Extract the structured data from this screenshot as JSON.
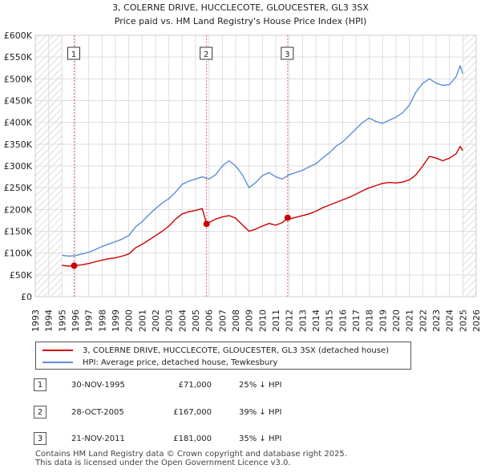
{
  "chart_data": {
    "type": "line",
    "title": "3, COLERNE DRIVE, HUCCLECOTE, GLOUCESTER, GL3 3SX",
    "subtitle": "Price paid vs. HM Land Registry's House Price Index (HPI)",
    "xlabel": "",
    "ylabel": "",
    "xlim": [
      1993,
      2026
    ],
    "ylim": [
      0,
      600000
    ],
    "y_ticks": [
      {
        "value": 0,
        "label": "£0"
      },
      {
        "value": 50000,
        "label": "£50K"
      },
      {
        "value": 100000,
        "label": "£100K"
      },
      {
        "value": 150000,
        "label": "£150K"
      },
      {
        "value": 200000,
        "label": "£200K"
      },
      {
        "value": 250000,
        "label": "£250K"
      },
      {
        "value": 300000,
        "label": "£300K"
      },
      {
        "value": 350000,
        "label": "£350K"
      },
      {
        "value": 400000,
        "label": "£400K"
      },
      {
        "value": 450000,
        "label": "£450K"
      },
      {
        "value": 500000,
        "label": "£500K"
      },
      {
        "value": 550000,
        "label": "£550K"
      },
      {
        "value": 600000,
        "label": "£600K"
      }
    ],
    "x_ticks": [
      "1993",
      "1994",
      "1995",
      "1996",
      "1997",
      "1998",
      "1999",
      "2000",
      "2001",
      "2002",
      "2003",
      "2004",
      "2005",
      "2006",
      "2007",
      "2008",
      "2009",
      "2010",
      "2011",
      "2012",
      "2013",
      "2014",
      "2015",
      "2016",
      "2017",
      "2018",
      "2019",
      "2020",
      "2021",
      "2022",
      "2023",
      "2024",
      "2025",
      "2026"
    ],
    "hatched_ranges": [
      [
        1993,
        1995
      ],
      [
        2025.0,
        2026
      ]
    ],
    "grid": true,
    "series": [
      {
        "name": "3, COLERNE DRIVE, HUCCLECOTE, GLOUCESTER, GL3 3SX (detached house)",
        "color": "#cc0000",
        "x": [
          1995.0,
          1995.5,
          1995.9,
          1996.5,
          1997.0,
          1997.5,
          1998.0,
          1998.5,
          1999.0,
          1999.5,
          2000.0,
          2000.5,
          2001.0,
          2001.5,
          2002.0,
          2002.5,
          2003.0,
          2003.5,
          2004.0,
          2004.5,
          2005.0,
          2005.5,
          2005.82,
          2006.0,
          2006.5,
          2007.0,
          2007.5,
          2008.0,
          2008.5,
          2009.0,
          2009.5,
          2010.0,
          2010.5,
          2011.0,
          2011.5,
          2011.89,
          2012.0,
          2012.5,
          2013.0,
          2013.5,
          2014.0,
          2014.5,
          2015.0,
          2015.5,
          2016.0,
          2016.5,
          2017.0,
          2017.5,
          2018.0,
          2018.5,
          2019.0,
          2019.5,
          2020.0,
          2020.5,
          2021.0,
          2021.5,
          2022.0,
          2022.5,
          2023.0,
          2023.5,
          2024.0,
          2024.5,
          2024.8,
          2025.0
        ],
        "y": [
          72000,
          70000,
          71000,
          73000,
          76000,
          80000,
          84000,
          87000,
          89000,
          93000,
          98000,
          112000,
          120000,
          130000,
          140000,
          150000,
          162000,
          178000,
          190000,
          195000,
          198000,
          202000,
          167000,
          170000,
          178000,
          183000,
          186000,
          180000,
          165000,
          150000,
          155000,
          162000,
          168000,
          164000,
          170000,
          181000,
          178000,
          182000,
          186000,
          190000,
          196000,
          204000,
          210000,
          216000,
          222000,
          228000,
          235000,
          243000,
          250000,
          255000,
          260000,
          262000,
          261000,
          263000,
          268000,
          280000,
          300000,
          322000,
          318000,
          312000,
          318000,
          328000,
          345000,
          335000
        ]
      },
      {
        "name": "HPI: Average price, detached house, Tewkesbury",
        "color": "#5b8ed6",
        "x": [
          1995.0,
          1995.5,
          1996.0,
          1996.5,
          1997.0,
          1997.5,
          1998.0,
          1998.5,
          1999.0,
          1999.5,
          2000.0,
          2000.5,
          2001.0,
          2001.5,
          2002.0,
          2002.5,
          2003.0,
          2003.5,
          2004.0,
          2004.5,
          2005.0,
          2005.5,
          2006.0,
          2006.5,
          2007.0,
          2007.5,
          2008.0,
          2008.5,
          2009.0,
          2009.5,
          2010.0,
          2010.5,
          2011.0,
          2011.5,
          2012.0,
          2012.5,
          2013.0,
          2013.5,
          2014.0,
          2014.5,
          2015.0,
          2015.5,
          2016.0,
          2016.5,
          2017.0,
          2017.5,
          2018.0,
          2018.5,
          2019.0,
          2019.5,
          2020.0,
          2020.5,
          2021.0,
          2021.5,
          2022.0,
          2022.5,
          2023.0,
          2023.5,
          2024.0,
          2024.5,
          2024.8,
          2025.0
        ],
        "y": [
          95000,
          93000,
          94000,
          98000,
          102000,
          108000,
          115000,
          121000,
          126000,
          132000,
          140000,
          160000,
          172000,
          188000,
          202000,
          215000,
          225000,
          240000,
          258000,
          265000,
          270000,
          275000,
          270000,
          280000,
          300000,
          312000,
          300000,
          280000,
          250000,
          262000,
          278000,
          285000,
          275000,
          270000,
          280000,
          285000,
          290000,
          298000,
          305000,
          318000,
          330000,
          345000,
          355000,
          370000,
          385000,
          400000,
          410000,
          402000,
          398000,
          405000,
          412000,
          422000,
          440000,
          470000,
          490000,
          500000,
          490000,
          485000,
          487000,
          505000,
          530000,
          512000
        ]
      }
    ],
    "sale_markers": [
      {
        "label": "1",
        "x": 1995.91,
        "y": 71000
      },
      {
        "label": "2",
        "x": 2005.82,
        "y": 167000
      },
      {
        "label": "3",
        "x": 2011.89,
        "y": 181000
      }
    ]
  },
  "legend": {
    "property_label": "3, COLERNE DRIVE, HUCCLECOTE, GLOUCESTER, GL3 3SX (detached house)",
    "property_color": "#cc0000",
    "hpi_label": "HPI: Average price, detached house, Tewkesbury",
    "hpi_color": "#5b8ed6"
  },
  "sales": [
    {
      "num": "1",
      "date": "30-NOV-1995",
      "price": "£71,000",
      "hpi": "25% ↓ HPI"
    },
    {
      "num": "2",
      "date": "28-OCT-2005",
      "price": "£167,000",
      "hpi": "39% ↓ HPI"
    },
    {
      "num": "3",
      "date": "21-NOV-2011",
      "price": "£181,000",
      "hpi": "35% ↓ HPI"
    }
  ],
  "footer": {
    "line1": "Contains HM Land Registry data © Crown copyright and database right 2025.",
    "line2": "This data is licensed under the Open Government Licence v3.0."
  }
}
